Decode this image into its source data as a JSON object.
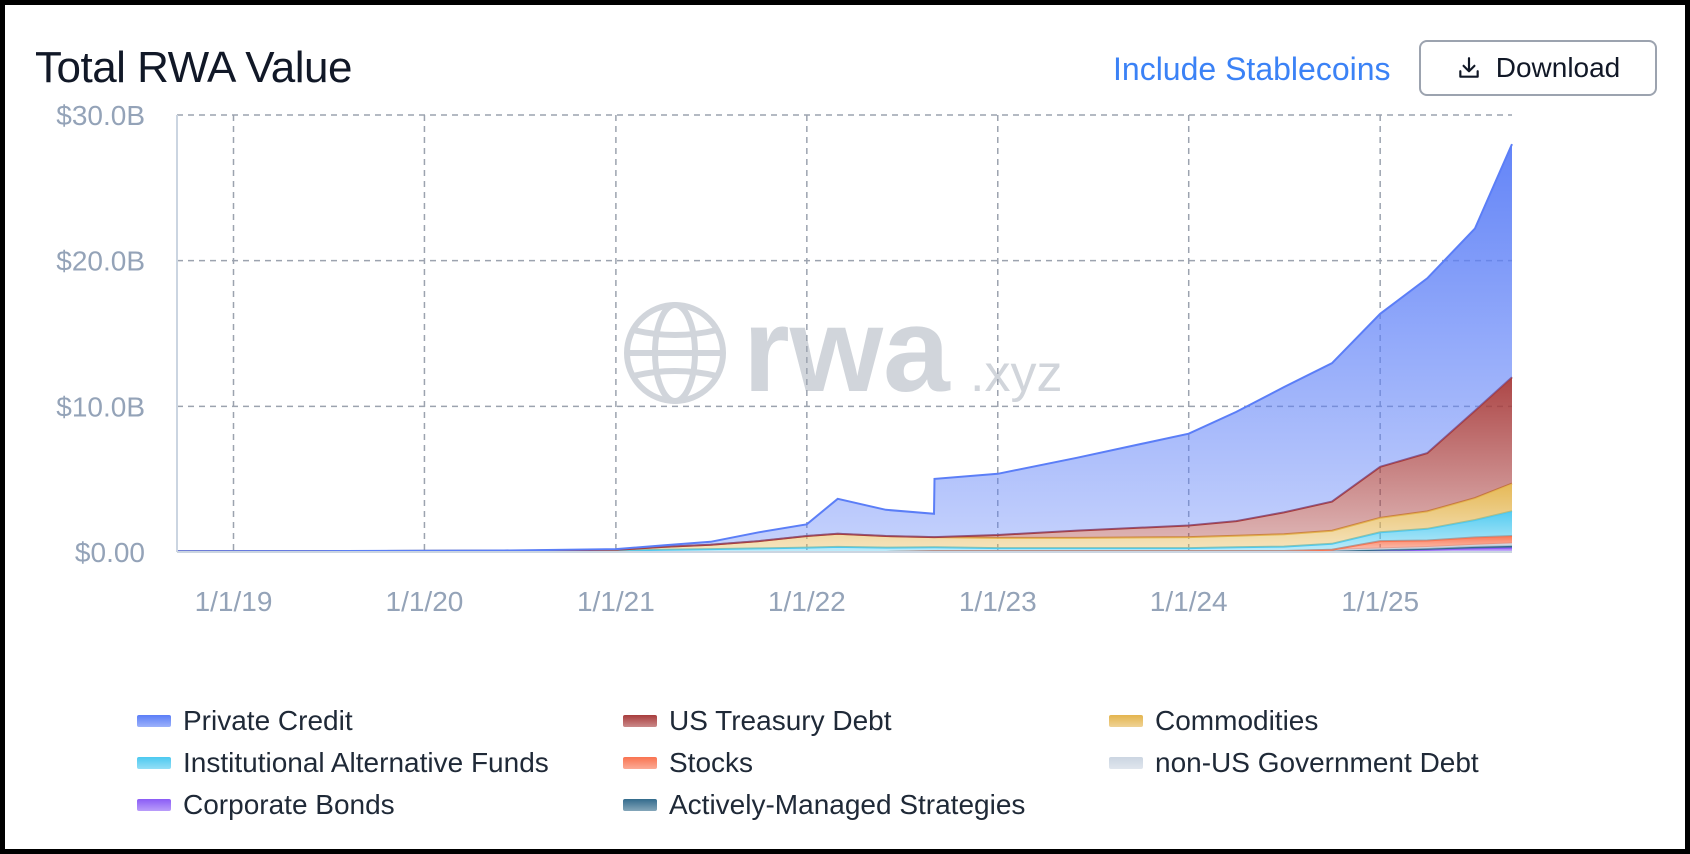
{
  "header": {
    "title": "Total RWA Value",
    "toggle_label": "Include Stablecoins",
    "download_label": "Download"
  },
  "watermark": {
    "brand": "rwa",
    "suffix": ".xyz"
  },
  "colors": {
    "accent": "#3b82f6",
    "grid": "#9ca3af",
    "tick_text": "#94a3b8"
  },
  "chart_data": {
    "type": "area",
    "stacked": true,
    "xlabel": "",
    "ylabel": "",
    "ylim": [
      0,
      30
    ],
    "y_ticks": [
      0,
      10,
      20,
      30
    ],
    "y_tick_labels": [
      "$0.00",
      "$10.0B",
      "$20.0B",
      "$30.0B"
    ],
    "x_range": [
      "2018-09-15",
      "2025-09-10"
    ],
    "x_ticks": [
      "2019-01-01",
      "2020-01-01",
      "2021-01-01",
      "2022-01-01",
      "2023-01-01",
      "2024-01-01",
      "2025-01-01"
    ],
    "x_tick_labels": [
      "1/1/19",
      "1/1/20",
      "1/1/21",
      "1/1/22",
      "1/1/23",
      "1/1/24",
      "1/1/25"
    ],
    "grid": true,
    "legend_position": "bottom",
    "x": [
      "2018-09-15",
      "2019-06-01",
      "2020-06-01",
      "2021-01-01",
      "2021-04-01",
      "2021-07-01",
      "2021-10-01",
      "2022-01-01",
      "2022-03-01",
      "2022-06-01",
      "2022-09-01",
      "2022-09-02",
      "2023-01-01",
      "2023-06-01",
      "2024-01-01",
      "2024-04-01",
      "2024-07-01",
      "2024-10-01",
      "2025-01-01",
      "2025-04-01",
      "2025-07-01",
      "2025-09-10"
    ],
    "series": [
      {
        "name": "Corporate Bonds",
        "color": "#8b5cf6",
        "values": [
          0,
          0,
          0,
          0,
          0,
          0,
          0,
          0,
          0,
          0,
          0,
          0,
          0,
          0,
          0,
          0,
          0,
          0.05,
          0.1,
          0.15,
          0.25,
          0.3
        ]
      },
      {
        "name": "Actively-Managed Strategies",
        "color": "#336b8c",
        "values": [
          0,
          0,
          0,
          0,
          0,
          0,
          0,
          0,
          0,
          0,
          0.02,
          0.02,
          0.02,
          0.02,
          0.02,
          0.02,
          0.02,
          0.03,
          0.05,
          0.07,
          0.1,
          0.12
        ]
      },
      {
        "name": "non-US Government Debt",
        "color": "#cbd5e1",
        "values": [
          0,
          0,
          0,
          0,
          0,
          0,
          0,
          0,
          0,
          0,
          0.05,
          0.05,
          0.05,
          0.05,
          0.05,
          0.05,
          0.05,
          0.08,
          0.1,
          0.12,
          0.15,
          0.18
        ]
      },
      {
        "name": "Stocks",
        "color": "#f97350",
        "values": [
          0,
          0,
          0,
          0,
          0,
          0,
          0,
          0,
          0,
          0,
          0,
          0,
          0,
          0,
          0,
          0,
          0,
          0,
          0.5,
          0.45,
          0.5,
          0.5
        ]
      },
      {
        "name": "Institutional Alternative Funds",
        "color": "#4cc9f0",
        "values": [
          0.05,
          0.06,
          0.08,
          0.1,
          0.15,
          0.2,
          0.25,
          0.3,
          0.35,
          0.3,
          0.25,
          0.25,
          0.2,
          0.2,
          0.2,
          0.25,
          0.3,
          0.4,
          0.6,
          0.8,
          1.2,
          1.7
        ]
      },
      {
        "name": "Commodities",
        "color": "#e4b54e",
        "values": [
          0,
          0,
          0,
          0.05,
          0.2,
          0.3,
          0.5,
          0.8,
          0.9,
          0.8,
          0.7,
          0.7,
          0.7,
          0.7,
          0.75,
          0.8,
          0.85,
          0.9,
          1.0,
          1.2,
          1.5,
          1.9
        ]
      },
      {
        "name": "US Treasury Debt",
        "color": "#a83c3c",
        "values": [
          0,
          0,
          0,
          0,
          0,
          0,
          0,
          0,
          0,
          0,
          0,
          0,
          0.2,
          0.5,
          0.8,
          1.0,
          1.5,
          2.0,
          3.5,
          4.0,
          6.0,
          7.3
        ]
      },
      {
        "name": "Private Credit",
        "color": "#5b7ef7",
        "values": [
          0,
          0,
          0.02,
          0.05,
          0.1,
          0.2,
          0.6,
          0.8,
          2.4,
          1.8,
          1.6,
          4.0,
          4.2,
          5.0,
          6.3,
          7.5,
          8.6,
          9.5,
          10.5,
          12.0,
          12.5,
          16.0
        ]
      }
    ]
  },
  "legend": [
    {
      "label": "Private Credit",
      "color": "#5b7ef7"
    },
    {
      "label": "US Treasury Debt",
      "color": "#a83c3c"
    },
    {
      "label": "Commodities",
      "color": "#e4b54e"
    },
    {
      "label": "Institutional Alternative Funds",
      "color": "#4cc9f0"
    },
    {
      "label": "Stocks",
      "color": "#f97350"
    },
    {
      "label": "non-US Government Debt",
      "color": "#cbd5e1"
    },
    {
      "label": "Corporate Bonds",
      "color": "#8b5cf6"
    },
    {
      "label": "Actively-Managed Strategies",
      "color": "#336b8c"
    }
  ]
}
